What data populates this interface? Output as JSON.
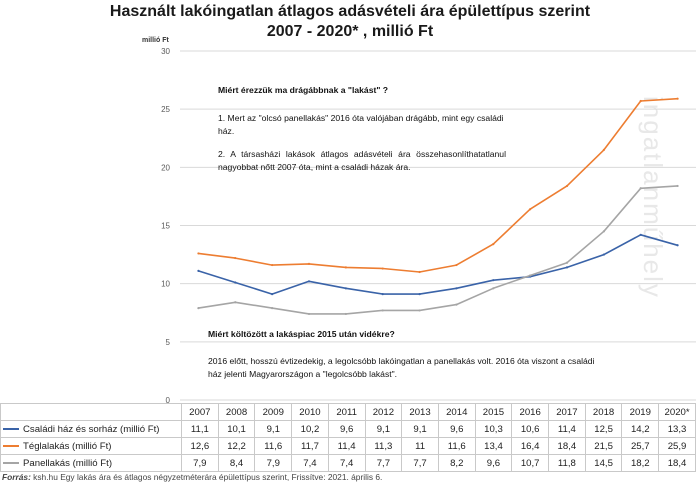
{
  "title": {
    "line1": "Használt lakóingatlan átlagos adásvételi ára épülettípus szerint",
    "line2": "2007 - 2020* , millió Ft"
  },
  "unit_label": "millió Ft",
  "watermark": "ingatlanműhely",
  "notes": {
    "q1": "Miért érezzük ma drágábbnak a \"lakást\"  ?",
    "a1": "1. Mert az \"olcsó panellakás\"  2016 óta valójában drágább, mint egy családi ház.",
    "a2": "2.   A   társasházi   lakások   átlagos   adásvételi   ára összehasonlíthatatlanul nagyobbat nőtt 2007 óta, mint a családi házak ára.",
    "q2": "Miért költözött a lakáspiac 2015 után vidékre?",
    "a3": "2016 előtt, hosszú évtizedekig, a legolcsóbb lakóingatlan a panellakás volt. 2016 óta viszont a családi ház jelenti Magyarországon a \"legolcsóbb lakást\"."
  },
  "source": {
    "label": "Forrás:",
    "text": " ksh.hu Egy lakás ára és átlagos négyzetméterára épülettípus szerint, Frissítve: 2021. április 6."
  },
  "colors": {
    "csaladi": "#3a63a8",
    "tegla": "#ed7d31",
    "panel": "#a5a5a5",
    "grid": "#d9d9d9"
  },
  "chart_data": {
    "type": "line",
    "title": "Használt lakóingatlan átlagos adásvételi ára épülettípus szerint 2007 - 2020* , millió Ft",
    "ylabel": "millió Ft",
    "ylim": [
      0,
      30
    ],
    "yticks": [
      0,
      5,
      10,
      15,
      20,
      25,
      30
    ],
    "grid": true,
    "categories": [
      "2007",
      "2008",
      "2009",
      "2010",
      "2011",
      "2012",
      "2013",
      "2014",
      "2015",
      "2016",
      "2017",
      "2018",
      "2019",
      "2020*"
    ],
    "series": [
      {
        "name": "Családi ház és sorház (millió Ft)",
        "color_key": "csaladi",
        "values": [
          11.1,
          10.1,
          9.1,
          10.2,
          9.6,
          9.1,
          9.1,
          9.6,
          10.3,
          10.6,
          11.4,
          12.5,
          14.2,
          13.3
        ],
        "labels": [
          "11,1",
          "10,1",
          "9,1",
          "10,2",
          "9,6",
          "9,1",
          "9,1",
          "9,6",
          "10,3",
          "10,6",
          "11,4",
          "12,5",
          "14,2",
          "13,3"
        ]
      },
      {
        "name": "Téglalakás (millió Ft)",
        "color_key": "tegla",
        "values": [
          12.6,
          12.2,
          11.6,
          11.7,
          11.4,
          11.3,
          11,
          11.6,
          13.4,
          16.4,
          18.4,
          21.5,
          25.7,
          25.9
        ],
        "labels": [
          "12,6",
          "12,2",
          "11,6",
          "11,7",
          "11,4",
          "11,3",
          "11",
          "11,6",
          "13,4",
          "16,4",
          "18,4",
          "21,5",
          "25,7",
          "25,9"
        ]
      },
      {
        "name": "Panellakás (millió Ft)",
        "color_key": "panel",
        "values": [
          7.9,
          8.4,
          7.9,
          7.4,
          7.4,
          7.7,
          7.7,
          8.2,
          9.6,
          10.7,
          11.8,
          14.5,
          18.2,
          18.4
        ],
        "labels": [
          "7,9",
          "8,4",
          "7,9",
          "7,4",
          "7,4",
          "7,7",
          "7,7",
          "8,2",
          "9,6",
          "10,7",
          "11,8",
          "14,5",
          "18,2",
          "18,4"
        ]
      }
    ]
  }
}
